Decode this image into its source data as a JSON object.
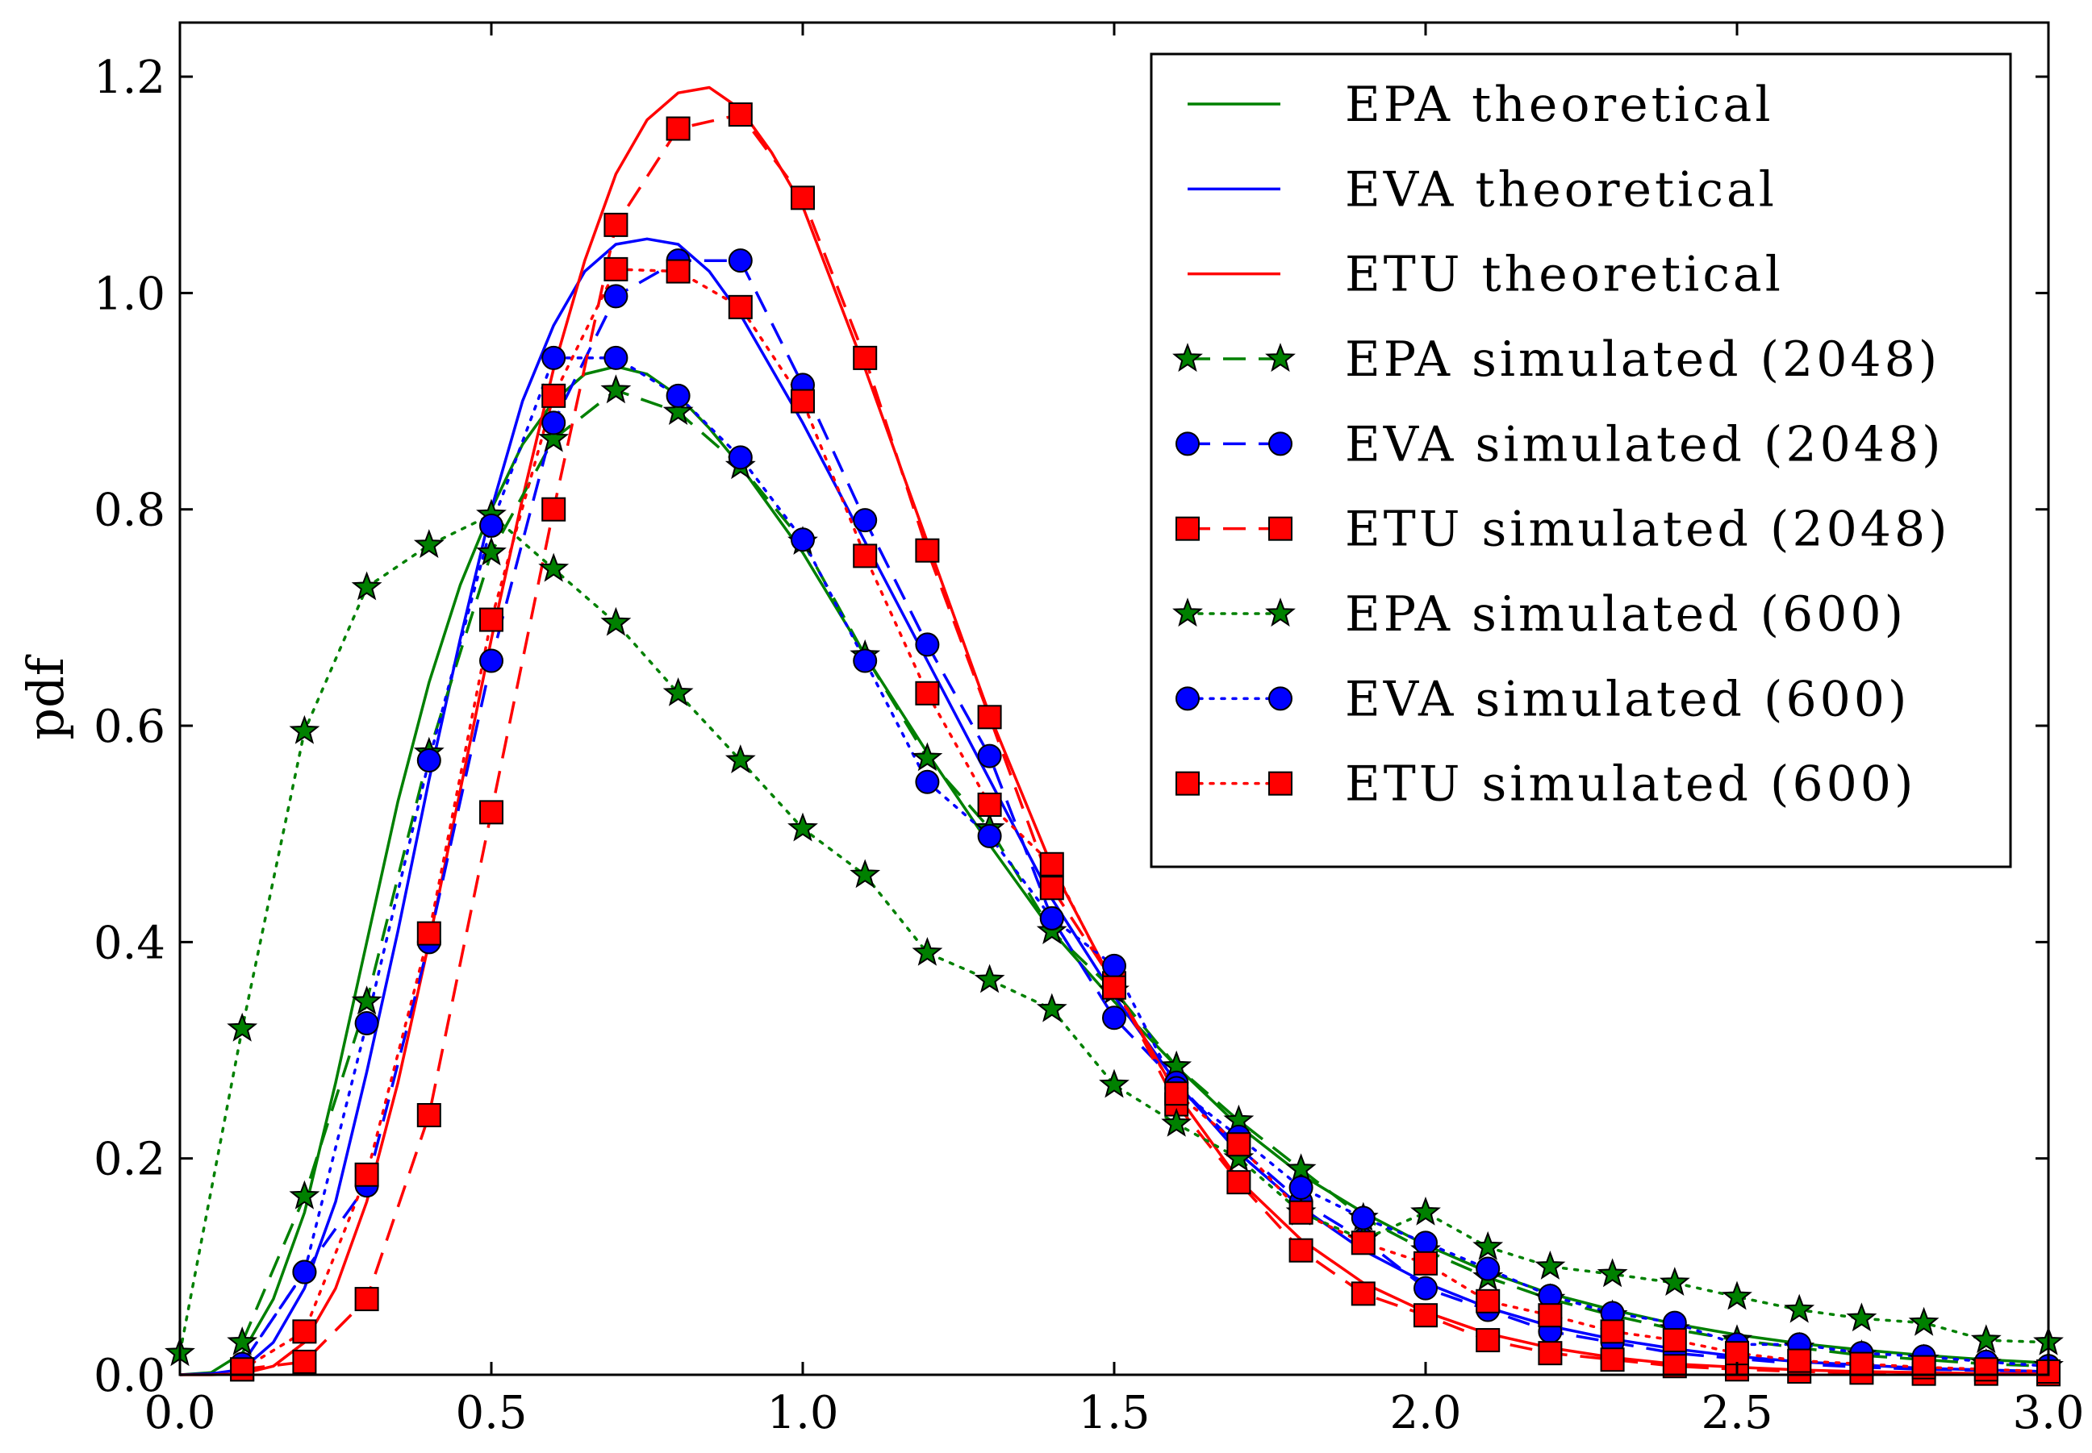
{
  "chart_data": {
    "type": "line",
    "title": "",
    "xlabel": "",
    "ylabel": "pdf",
    "xlim": [
      0.0,
      3.0
    ],
    "ylim": [
      0.0,
      1.25
    ],
    "x_ticks": [
      "0.0",
      "0.5",
      "1.0",
      "1.5",
      "2.0",
      "2.5",
      "3.0"
    ],
    "y_ticks": [
      "0.0",
      "0.2",
      "0.4",
      "0.6",
      "0.8",
      "1.0",
      "1.2"
    ],
    "grid": false,
    "legend_position": "top-right",
    "series": [
      {
        "name": "EPA theoretical",
        "color": "#008000",
        "line": "solid",
        "marker": "none",
        "x": [
          0,
          0.05,
          0.1,
          0.15,
          0.2,
          0.25,
          0.3,
          0.35,
          0.4,
          0.45,
          0.5,
          0.55,
          0.6,
          0.65,
          0.7,
          0.75,
          0.8,
          0.85,
          0.9,
          0.95,
          1.0,
          1.1,
          1.2,
          1.3,
          1.4,
          1.5,
          1.6,
          1.7,
          1.8,
          1.9,
          2.0,
          2.1,
          2.2,
          2.3,
          2.4,
          2.5,
          2.6,
          2.7,
          2.8,
          2.9,
          3.0
        ],
        "y": [
          0,
          0.002,
          0.02,
          0.07,
          0.15,
          0.27,
          0.4,
          0.53,
          0.64,
          0.73,
          0.8,
          0.86,
          0.9,
          0.925,
          0.932,
          0.925,
          0.905,
          0.875,
          0.84,
          0.8,
          0.76,
          0.665,
          0.575,
          0.49,
          0.41,
          0.345,
          0.285,
          0.23,
          0.185,
          0.15,
          0.12,
          0.095,
          0.075,
          0.06,
          0.047,
          0.037,
          0.029,
          0.023,
          0.018,
          0.014,
          0.011
        ]
      },
      {
        "name": "EVA theoretical",
        "color": "#0000ff",
        "line": "solid",
        "marker": "none",
        "x": [
          0,
          0.05,
          0.1,
          0.15,
          0.2,
          0.25,
          0.3,
          0.35,
          0.4,
          0.45,
          0.5,
          0.55,
          0.6,
          0.65,
          0.7,
          0.75,
          0.8,
          0.85,
          0.9,
          0.95,
          1.0,
          1.1,
          1.2,
          1.3,
          1.4,
          1.5,
          1.6,
          1.7,
          1.8,
          1.9,
          2.0,
          2.1,
          2.2,
          2.3,
          2.4,
          2.5,
          2.6,
          2.7,
          2.8,
          2.9,
          3.0
        ],
        "y": [
          0,
          0.001,
          0.005,
          0.03,
          0.08,
          0.16,
          0.28,
          0.41,
          0.55,
          0.68,
          0.8,
          0.9,
          0.97,
          1.02,
          1.045,
          1.05,
          1.045,
          1.02,
          0.98,
          0.93,
          0.88,
          0.77,
          0.66,
          0.55,
          0.44,
          0.35,
          0.27,
          0.205,
          0.155,
          0.115,
          0.085,
          0.062,
          0.045,
          0.033,
          0.024,
          0.017,
          0.012,
          0.009,
          0.006,
          0.0045,
          0.003
        ]
      },
      {
        "name": "ETU theoretical",
        "color": "#ff0000",
        "line": "solid",
        "marker": "none",
        "x": [
          0,
          0.05,
          0.1,
          0.15,
          0.2,
          0.25,
          0.3,
          0.35,
          0.4,
          0.45,
          0.5,
          0.55,
          0.6,
          0.65,
          0.7,
          0.75,
          0.8,
          0.85,
          0.9,
          0.95,
          1.0,
          1.1,
          1.2,
          1.3,
          1.4,
          1.5,
          1.6,
          1.7,
          1.8,
          1.9,
          2.0,
          2.1,
          2.2,
          2.3,
          2.4,
          2.5,
          2.6,
          2.7,
          2.8,
          2.9,
          3.0
        ],
        "y": [
          0,
          0,
          0.001,
          0.008,
          0.03,
          0.08,
          0.16,
          0.27,
          0.4,
          0.54,
          0.68,
          0.81,
          0.93,
          1.03,
          1.11,
          1.16,
          1.185,
          1.19,
          1.17,
          1.13,
          1.08,
          0.93,
          0.77,
          0.61,
          0.47,
          0.36,
          0.26,
          0.18,
          0.125,
          0.085,
          0.058,
          0.038,
          0.025,
          0.016,
          0.01,
          0.007,
          0.0045,
          0.003,
          0.002,
          0.0012,
          0.0008
        ]
      },
      {
        "name": "EPA simulated (2048)",
        "color": "#008000",
        "line": "dashed",
        "marker": "star",
        "x": [
          0.1,
          0.2,
          0.3,
          0.4,
          0.5,
          0.6,
          0.7,
          0.8,
          0.9,
          1.0,
          1.1,
          1.2,
          1.3,
          1.4,
          1.5,
          1.6,
          1.7,
          1.8,
          1.9,
          2.0,
          2.1,
          2.2,
          2.3,
          2.4,
          2.5,
          2.6,
          2.7,
          2.8,
          2.9,
          3.0
        ],
        "y": [
          0.03,
          0.165,
          0.345,
          0.575,
          0.76,
          0.865,
          0.91,
          0.89,
          0.84,
          0.77,
          0.665,
          0.57,
          0.505,
          0.41,
          0.355,
          0.285,
          0.235,
          0.19,
          0.145,
          0.115,
          0.09,
          0.07,
          0.055,
          0.042,
          0.032,
          0.025,
          0.018,
          0.014,
          0.01,
          0.008
        ]
      },
      {
        "name": "EVA simulated (2048)",
        "color": "#0000ff",
        "line": "dashed",
        "marker": "circle",
        "x": [
          0.1,
          0.2,
          0.3,
          0.4,
          0.5,
          0.6,
          0.7,
          0.8,
          0.9,
          1.0,
          1.1,
          1.2,
          1.3,
          1.4,
          1.5,
          1.6,
          1.7,
          1.8,
          1.9,
          2.0,
          2.1,
          2.2,
          2.3,
          2.4,
          2.5,
          2.6,
          2.7,
          2.8,
          2.9,
          3.0
        ],
        "y": [
          0.01,
          0.095,
          0.175,
          0.4,
          0.66,
          0.88,
          0.997,
          1.03,
          1.03,
          0.915,
          0.79,
          0.675,
          0.572,
          0.422,
          0.33,
          0.27,
          0.21,
          0.16,
          0.125,
          0.08,
          0.06,
          0.04,
          0.03,
          0.02,
          0.015,
          0.01,
          0.007,
          0.005,
          0.004,
          0.003
        ]
      },
      {
        "name": "ETU simulated (2048)",
        "color": "#ff0000",
        "line": "dashed",
        "marker": "square",
        "x": [
          0.1,
          0.2,
          0.3,
          0.4,
          0.5,
          0.6,
          0.7,
          0.8,
          0.9,
          1.0,
          1.1,
          1.2,
          1.3,
          1.4,
          1.5,
          1.6,
          1.7,
          1.8,
          1.9,
          2.0,
          2.1,
          2.2,
          2.3,
          2.4,
          2.5,
          2.6,
          2.7,
          2.8,
          2.9,
          3.0
        ],
        "y": [
          0.005,
          0.012,
          0.07,
          0.24,
          0.52,
          0.8,
          1.063,
          1.152,
          1.165,
          1.088,
          0.94,
          0.762,
          0.608,
          0.45,
          0.362,
          0.25,
          0.178,
          0.115,
          0.075,
          0.055,
          0.032,
          0.02,
          0.014,
          0.008,
          0.005,
          0.003,
          0.002,
          0.001,
          0.001,
          0.0005
        ]
      },
      {
        "name": "EPA simulated (600)",
        "color": "#008000",
        "line": "dotted",
        "marker": "star",
        "x": [
          0.0,
          0.1,
          0.2,
          0.3,
          0.4,
          0.5,
          0.6,
          0.7,
          0.8,
          0.9,
          1.0,
          1.1,
          1.2,
          1.3,
          1.4,
          1.5,
          1.6,
          1.7,
          1.8,
          1.9,
          2.0,
          2.1,
          2.2,
          2.3,
          2.4,
          2.5,
          2.6,
          2.7,
          2.8,
          2.9,
          3.0
        ],
        "y": [
          0.02,
          0.32,
          0.595,
          0.728,
          0.767,
          0.795,
          0.745,
          0.695,
          0.63,
          0.568,
          0.505,
          0.462,
          0.39,
          0.365,
          0.338,
          0.268,
          0.232,
          0.2,
          0.15,
          0.125,
          0.15,
          0.118,
          0.1,
          0.093,
          0.085,
          0.072,
          0.06,
          0.052,
          0.048,
          0.032,
          0.03
        ]
      },
      {
        "name": "EVA simulated (600)",
        "color": "#0000ff",
        "line": "dotted",
        "marker": "circle",
        "x": [
          0.1,
          0.2,
          0.3,
          0.4,
          0.5,
          0.6,
          0.7,
          0.8,
          0.9,
          1.0,
          1.1,
          1.2,
          1.3,
          1.4,
          1.5,
          1.6,
          1.7,
          1.8,
          1.9,
          2.0,
          2.1,
          2.2,
          2.3,
          2.4,
          2.5,
          2.6,
          2.7,
          2.8,
          2.9,
          3.0
        ],
        "y": [
          0.01,
          0.095,
          0.325,
          0.568,
          0.785,
          0.94,
          0.94,
          0.905,
          0.848,
          0.772,
          0.66,
          0.548,
          0.498,
          0.422,
          0.378,
          0.265,
          0.22,
          0.173,
          0.145,
          0.122,
          0.098,
          0.073,
          0.057,
          0.048,
          0.028,
          0.028,
          0.02,
          0.017,
          0.012,
          0.008
        ]
      },
      {
        "name": "ETU simulated (600)",
        "color": "#ff0000",
        "line": "dotted",
        "marker": "square",
        "x": [
          0.1,
          0.2,
          0.3,
          0.4,
          0.5,
          0.6,
          0.7,
          0.8,
          0.9,
          1.0,
          1.1,
          1.2,
          1.3,
          1.4,
          1.5,
          1.6,
          1.7,
          1.8,
          1.9,
          2.0,
          2.1,
          2.2,
          2.3,
          2.4,
          2.5,
          2.6,
          2.7,
          2.8,
          2.9,
          3.0
        ],
        "y": [
          0.005,
          0.04,
          0.185,
          0.408,
          0.698,
          0.905,
          1.022,
          1.02,
          0.987,
          0.9,
          0.757,
          0.63,
          0.527,
          0.472,
          0.358,
          0.26,
          0.213,
          0.15,
          0.122,
          0.103,
          0.068,
          0.055,
          0.04,
          0.032,
          0.02,
          0.013,
          0.01,
          0.007,
          0.005,
          0.003
        ]
      }
    ]
  }
}
